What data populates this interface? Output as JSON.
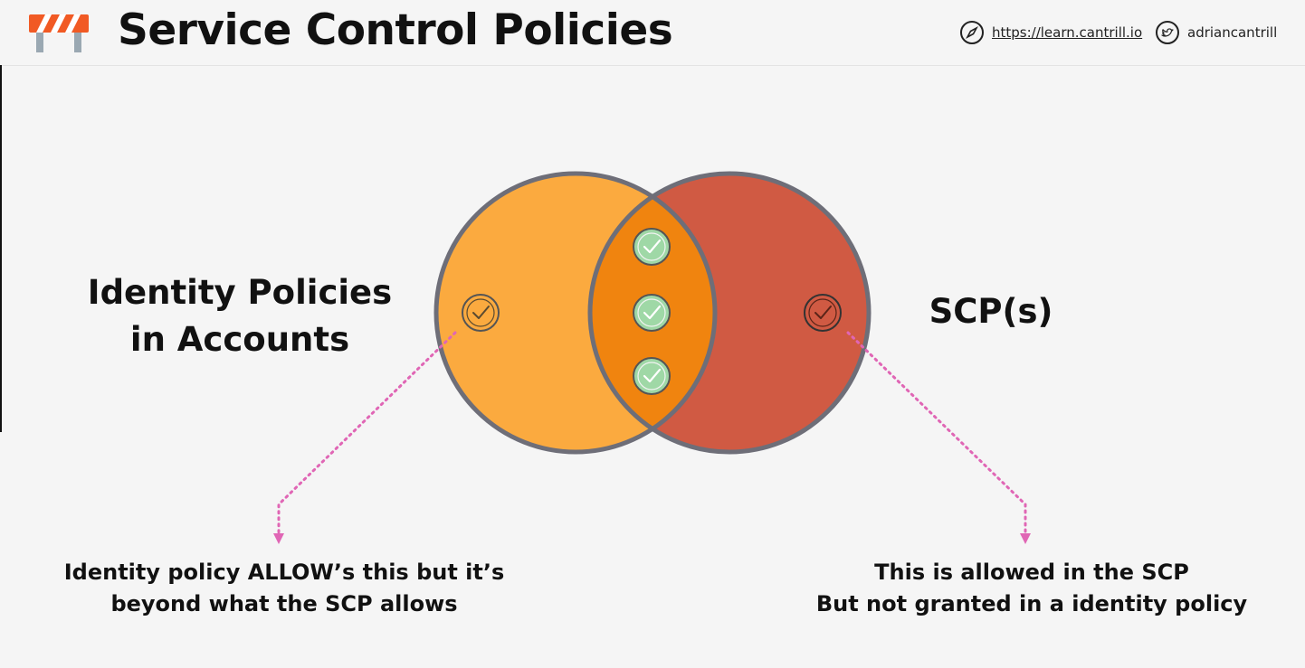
{
  "header": {
    "title": "Service Control Policies",
    "website": "https://learn.cantrill.io",
    "twitter_handle": "adriancantrill",
    "website_icon": "compass-icon",
    "twitter_icon": "twitter-icon",
    "logo_icon": "road-barrier-icon"
  },
  "diagram": {
    "left_label": "Identity Policies\nin Accounts",
    "right_label": "SCP(s)",
    "left_caption": "Identity policy ALLOW’s this but it’s\nbeyond what the SCP allows",
    "right_caption": "This is allowed in the SCP\nBut not granted in a identity policy",
    "colors": {
      "identity_circle": "#fbaa3f",
      "scp_circle": "#d05a43",
      "overlap": "#f0840f",
      "check_green": "#9fd8a6",
      "arrow": "#e066b5"
    }
  }
}
